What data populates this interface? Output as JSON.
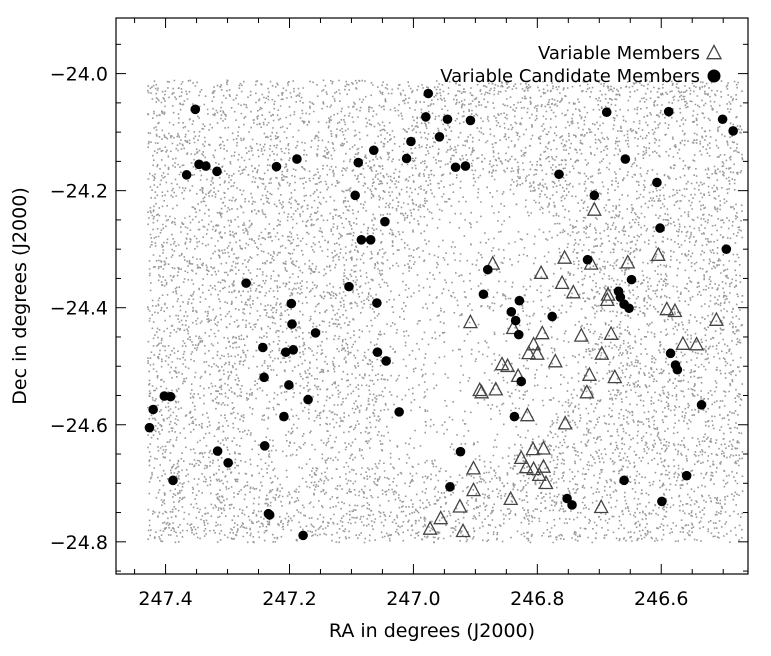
{
  "chart_data": {
    "type": "scatter",
    "title": "",
    "xlabel": "RA in degrees (J2000)",
    "ylabel": "Dec in degrees (J2000)",
    "xlim": [
      247.48,
      246.46
    ],
    "ylim": [
      -24.855,
      -23.905
    ],
    "x_inverted": true,
    "grid": false,
    "legend_position": "top-right",
    "xticks": [
      247.4,
      247.2,
      247.0,
      246.8,
      246.6
    ],
    "xtick_labels": [
      "247.4",
      "247.2",
      "247.0",
      "246.8",
      "246.6"
    ],
    "yticks": [
      -24.0,
      -24.2,
      -24.4,
      -24.6,
      -24.8
    ],
    "ytick_labels": [
      "−24.0",
      "−24.2",
      "−24.4",
      "−24.6",
      "−24.8"
    ],
    "background_field": {
      "ra_range": [
        247.43,
        246.47
      ],
      "dec_range": [
        -24.8,
        -24.01
      ],
      "color": "#999999"
    },
    "series": [
      {
        "name": "Variable Members",
        "marker": "open-triangle",
        "color": "#444444",
        "points": [
          [
            246.908,
            -24.425
          ],
          [
            246.872,
            -24.325
          ],
          [
            246.857,
            -24.497
          ],
          [
            246.89,
            -24.545
          ],
          [
            246.848,
            -24.5
          ],
          [
            246.893,
            -24.541
          ],
          [
            246.867,
            -24.54
          ],
          [
            246.839,
            -24.435
          ],
          [
            246.794,
            -24.341
          ],
          [
            246.806,
            -24.463
          ],
          [
            246.792,
            -24.444
          ],
          [
            246.8,
            -24.479
          ],
          [
            246.814,
            -24.478
          ],
          [
            246.831,
            -24.517
          ],
          [
            246.771,
            -24.492
          ],
          [
            246.756,
            -24.315
          ],
          [
            246.742,
            -24.374
          ],
          [
            246.713,
            -24.325
          ],
          [
            246.76,
            -24.358
          ],
          [
            246.716,
            -24.515
          ],
          [
            246.729,
            -24.448
          ],
          [
            246.72,
            -24.545
          ],
          [
            246.696,
            -24.479
          ],
          [
            246.687,
            -24.387
          ],
          [
            246.681,
            -24.445
          ],
          [
            246.708,
            -24.233
          ],
          [
            246.675,
            -24.519
          ],
          [
            246.686,
            -24.378
          ],
          [
            246.654,
            -24.323
          ],
          [
            246.605,
            -24.31
          ],
          [
            246.591,
            -24.403
          ],
          [
            246.578,
            -24.406
          ],
          [
            246.565,
            -24.462
          ],
          [
            246.543,
            -24.463
          ],
          [
            246.511,
            -24.421
          ],
          [
            246.755,
            -24.598
          ],
          [
            246.816,
            -24.584
          ],
          [
            246.79,
            -24.641
          ],
          [
            246.807,
            -24.642
          ],
          [
            246.826,
            -24.657
          ],
          [
            246.806,
            -24.676
          ],
          [
            246.79,
            -24.672
          ],
          [
            246.797,
            -24.686
          ],
          [
            246.786,
            -24.7
          ],
          [
            246.818,
            -24.673
          ],
          [
            246.843,
            -24.727
          ],
          [
            246.903,
            -24.675
          ],
          [
            246.925,
            -24.74
          ],
          [
            246.956,
            -24.76
          ],
          [
            246.903,
            -24.712
          ],
          [
            246.92,
            -24.782
          ],
          [
            246.973,
            -24.778
          ],
          [
            246.697,
            -24.741
          ]
        ]
      },
      {
        "name": "Variable Candidate Members",
        "marker": "filled-circle",
        "color": "#000000",
        "points": [
          [
            247.426,
            -24.605
          ],
          [
            247.42,
            -24.574
          ],
          [
            247.402,
            -24.551
          ],
          [
            247.392,
            -24.552
          ],
          [
            247.388,
            -24.695
          ],
          [
            247.366,
            -24.173
          ],
          [
            247.352,
            -24.061
          ],
          [
            247.346,
            -24.155
          ],
          [
            247.335,
            -24.158
          ],
          [
            247.317,
            -24.167
          ],
          [
            247.316,
            -24.645
          ],
          [
            247.299,
            -24.665
          ],
          [
            247.27,
            -24.358
          ],
          [
            247.243,
            -24.468
          ],
          [
            247.241,
            -24.519
          ],
          [
            247.24,
            -24.636
          ],
          [
            247.234,
            -24.752
          ],
          [
            247.232,
            -24.754
          ],
          [
            247.221,
            -24.159
          ],
          [
            247.206,
            -24.476
          ],
          [
            247.197,
            -24.393
          ],
          [
            247.196,
            -24.428
          ],
          [
            247.194,
            -24.472
          ],
          [
            247.201,
            -24.532
          ],
          [
            247.209,
            -24.586
          ],
          [
            247.188,
            -24.146
          ],
          [
            247.178,
            -24.789
          ],
          [
            247.17,
            -24.557
          ],
          [
            247.158,
            -24.443
          ],
          [
            247.104,
            -24.364
          ],
          [
            247.094,
            -24.208
          ],
          [
            247.089,
            -24.152
          ],
          [
            247.084,
            -24.284
          ],
          [
            247.069,
            -24.284
          ],
          [
            247.064,
            -24.131
          ],
          [
            247.059,
            -24.392
          ],
          [
            247.058,
            -24.476
          ],
          [
            247.046,
            -24.253
          ],
          [
            247.044,
            -24.491
          ],
          [
            247.023,
            -24.578
          ],
          [
            247.011,
            -24.145
          ],
          [
            247.004,
            -24.116
          ],
          [
            246.98,
            -24.074
          ],
          [
            246.976,
            -24.034
          ],
          [
            246.958,
            -24.108
          ],
          [
            246.945,
            -24.078
          ],
          [
            246.932,
            -24.16
          ],
          [
            246.916,
            -24.158
          ],
          [
            246.924,
            -24.646
          ],
          [
            246.941,
            -24.706
          ],
          [
            246.908,
            -24.08
          ],
          [
            246.887,
            -24.377
          ],
          [
            246.88,
            -24.335
          ],
          [
            246.842,
            -24.407
          ],
          [
            246.835,
            -24.422
          ],
          [
            246.83,
            -24.446
          ],
          [
            246.829,
            -24.388
          ],
          [
            246.826,
            -24.526
          ],
          [
            246.837,
            -24.586
          ],
          [
            246.776,
            -24.415
          ],
          [
            246.765,
            -24.172
          ],
          [
            246.752,
            -24.726
          ],
          [
            246.744,
            -24.737
          ],
          [
            246.719,
            -24.318
          ],
          [
            246.708,
            -24.208
          ],
          [
            246.688,
            -24.066
          ],
          [
            246.669,
            -24.372
          ],
          [
            246.666,
            -24.382
          ],
          [
            246.66,
            -24.394
          ],
          [
            246.652,
            -24.401
          ],
          [
            246.658,
            -24.146
          ],
          [
            246.648,
            -24.352
          ],
          [
            246.66,
            -24.695
          ],
          [
            246.607,
            -24.186
          ],
          [
            246.602,
            -24.264
          ],
          [
            246.599,
            -24.731
          ],
          [
            246.588,
            -24.065
          ],
          [
            246.585,
            -24.478
          ],
          [
            246.577,
            -24.498
          ],
          [
            246.574,
            -24.506
          ],
          [
            246.559,
            -24.687
          ],
          [
            246.535,
            -24.566
          ],
          [
            246.501,
            -24.078
          ],
          [
            246.495,
            -24.3
          ],
          [
            246.484,
            -24.098
          ]
        ]
      }
    ]
  }
}
